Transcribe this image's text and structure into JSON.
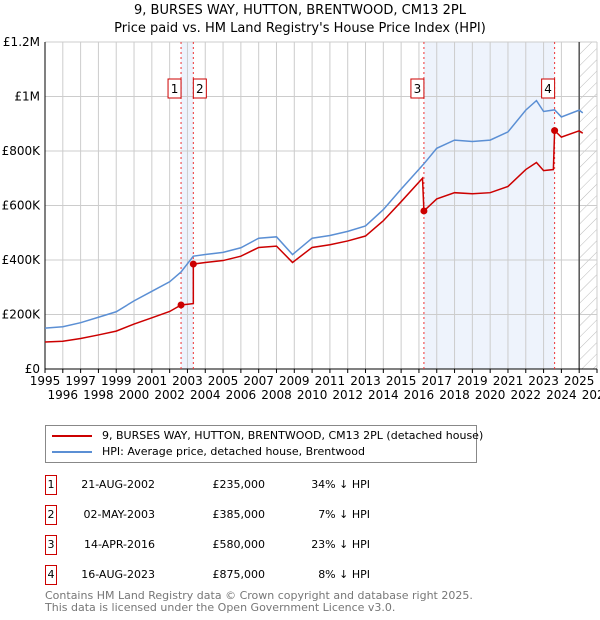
{
  "chart_data": {
    "type": "line",
    "title": "9, BURSES WAY, HUTTON, BRENTWOOD, CM13 2PL",
    "subtitle": "Price paid vs. HM Land Registry's House Price Index (HPI)",
    "xlim": [
      1995,
      2026
    ],
    "ylim": [
      0,
      1200000
    ],
    "y_ticks": [
      {
        "v": 0,
        "label": "£0"
      },
      {
        "v": 200000,
        "label": "£200K"
      },
      {
        "v": 400000,
        "label": "£400K"
      },
      {
        "v": 600000,
        "label": "£600K"
      },
      {
        "v": 800000,
        "label": "£800K"
      },
      {
        "v": 1000000,
        "label": "£1M"
      },
      {
        "v": 1200000,
        "label": "£1.2M"
      }
    ],
    "x_ticks": [
      "1995",
      "1996",
      "1997",
      "1998",
      "1999",
      "2000",
      "2001",
      "2002",
      "2003",
      "2004",
      "2005",
      "2006",
      "2007",
      "2008",
      "2009",
      "2010",
      "2011",
      "2012",
      "2013",
      "2014",
      "2015",
      "2016",
      "2017",
      "2018",
      "2019",
      "2020",
      "2021",
      "2022",
      "2023",
      "2024",
      "2025",
      "2026"
    ],
    "forecast_from": 2025.0,
    "series": [
      {
        "name": "9, BURSES WAY, HUTTON, BRENTWOOD, CM13 2PL (detached house)",
        "color": "#cc0000",
        "points": [
          [
            1995,
            99000
          ],
          [
            1996,
            102000
          ],
          [
            1997,
            112000
          ],
          [
            1998,
            125000
          ],
          [
            1999,
            139000
          ],
          [
            2000,
            165000
          ],
          [
            2001,
            188000
          ],
          [
            2002,
            211000
          ],
          [
            2002.64,
            235000
          ],
          [
            2003.33,
            240000
          ],
          [
            2003.33,
            385000
          ],
          [
            2004,
            391000
          ],
          [
            2005,
            398000
          ],
          [
            2006,
            414000
          ],
          [
            2007,
            446000
          ],
          [
            2008,
            451000
          ],
          [
            2008.9,
            391000
          ],
          [
            2010,
            446000
          ],
          [
            2011,
            456000
          ],
          [
            2012,
            470000
          ],
          [
            2013,
            488000
          ],
          [
            2014,
            544000
          ],
          [
            2015,
            614000
          ],
          [
            2016.2,
            700000
          ],
          [
            2016.28,
            580000
          ],
          [
            2017,
            624000
          ],
          [
            2018,
            647000
          ],
          [
            2019,
            643000
          ],
          [
            2020,
            647000
          ],
          [
            2021,
            670000
          ],
          [
            2022,
            732000
          ],
          [
            2022.6,
            758000
          ],
          [
            2023,
            728000
          ],
          [
            2023.55,
            732000
          ],
          [
            2023.62,
            875000
          ],
          [
            2024,
            851000
          ],
          [
            2025,
            874000
          ],
          [
            2025.2,
            865000
          ]
        ]
      },
      {
        "name": "HPI: Average price, detached house, Brentwood",
        "color": "#5b8fd4",
        "points": [
          [
            1995,
            150000
          ],
          [
            1996,
            155000
          ],
          [
            1997,
            170000
          ],
          [
            1998,
            190000
          ],
          [
            1999,
            210000
          ],
          [
            2000,
            250000
          ],
          [
            2001,
            285000
          ],
          [
            2002,
            320000
          ],
          [
            2002.64,
            356000
          ],
          [
            2003.33,
            414000
          ],
          [
            2004,
            420000
          ],
          [
            2005,
            428000
          ],
          [
            2006,
            445000
          ],
          [
            2007,
            480000
          ],
          [
            2008,
            485000
          ],
          [
            2008.9,
            420000
          ],
          [
            2010,
            480000
          ],
          [
            2011,
            490000
          ],
          [
            2012,
            505000
          ],
          [
            2013,
            525000
          ],
          [
            2014,
            585000
          ],
          [
            2015,
            660000
          ],
          [
            2016.28,
            753000
          ],
          [
            2017,
            810000
          ],
          [
            2018,
            840000
          ],
          [
            2019,
            835000
          ],
          [
            2020,
            840000
          ],
          [
            2021,
            870000
          ],
          [
            2022,
            950000
          ],
          [
            2022.6,
            985000
          ],
          [
            2023,
            945000
          ],
          [
            2023.62,
            951000
          ],
          [
            2024,
            925000
          ],
          [
            2025,
            950000
          ],
          [
            2025.2,
            940000
          ]
        ]
      }
    ],
    "sales": [
      {
        "n": "1",
        "x": 2002.64,
        "y": 235000
      },
      {
        "n": "2",
        "x": 2003.33,
        "y": 385000
      },
      {
        "n": "3",
        "x": 2016.28,
        "y": 580000
      },
      {
        "n": "4",
        "x": 2023.62,
        "y": 875000
      }
    ]
  },
  "legend": {
    "red": "9, BURSES WAY, HUTTON, BRENTWOOD, CM13 2PL (detached house)",
    "blue": "HPI: Average price, detached house, Brentwood"
  },
  "table": [
    {
      "n": "1",
      "date": "21-AUG-2002",
      "price": "£235,000",
      "hpi": "34% ↓ HPI"
    },
    {
      "n": "2",
      "date": "02-MAY-2003",
      "price": "£385,000",
      "hpi": "7% ↓ HPI"
    },
    {
      "n": "3",
      "date": "14-APR-2016",
      "price": "£580,000",
      "hpi": "23% ↓ HPI"
    },
    {
      "n": "4",
      "date": "16-AUG-2023",
      "price": "£875,000",
      "hpi": "8% ↓ HPI"
    }
  ],
  "footer": {
    "line1": "Contains HM Land Registry data © Crown copyright and database right 2025.",
    "line2": "This data is licensed under the Open Government Licence v3.0."
  }
}
